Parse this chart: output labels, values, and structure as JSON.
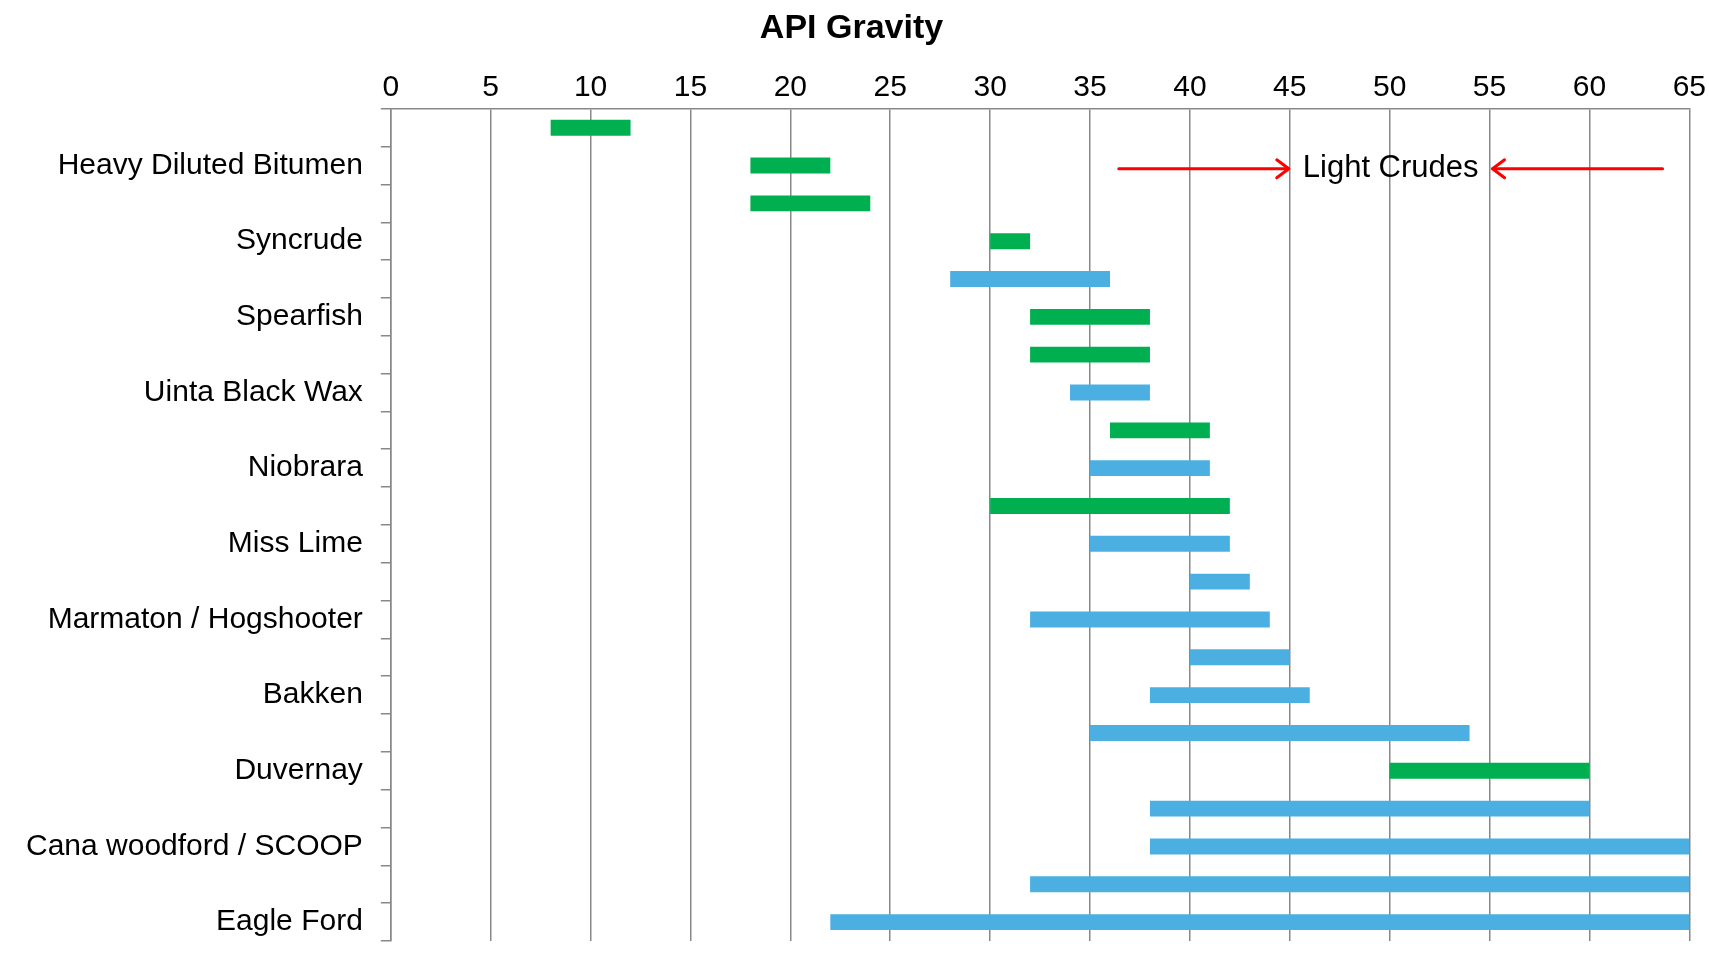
{
  "chart_data": {
    "type": "bar",
    "orientation": "horizontal",
    "title": "API Gravity",
    "categories": [
      null,
      "Heavy Diluted Bitumen",
      null,
      "Syncrude",
      null,
      "Spearfish",
      null,
      "Uinta Black Wax",
      null,
      "Niobrara",
      null,
      "Miss Lime",
      null,
      "Marmaton / Hogshooter",
      null,
      "Bakken",
      null,
      "Duvernay",
      null,
      "Cana woodford / SCOOP",
      null,
      "Eagle Ford"
    ],
    "base": [
      8,
      18,
      18,
      30,
      28,
      32,
      32,
      34,
      36,
      35,
      30,
      35,
      40,
      32,
      40,
      38,
      35,
      50,
      38,
      38,
      32,
      22
    ],
    "values": [
      4,
      4,
      6,
      2,
      8,
      6,
      6,
      4,
      5,
      6,
      12,
      7,
      3,
      12,
      5,
      8,
      19,
      10,
      22,
      27,
      33,
      43
    ],
    "colors": [
      "#00b050",
      "#00b050",
      "#00b050",
      "#00b050",
      "#4bafe1",
      "#00b050",
      "#00b050",
      "#4bafe1",
      "#00b050",
      "#4bafe1",
      "#00b050",
      "#4bafe1",
      "#4bafe1",
      "#4bafe1",
      "#4bafe1",
      "#4bafe1",
      "#4bafe1",
      "#00b050",
      "#4bafe1",
      "#4bafe1",
      "#4bafe1",
      "#4bafe1"
    ],
    "xlim": [
      0,
      65
    ],
    "xticks": [
      0,
      5,
      10,
      15,
      20,
      25,
      30,
      35,
      40,
      45,
      50,
      55,
      60,
      65
    ],
    "grid": "x",
    "legend": false,
    "annotations": [
      "Light Crudes"
    ]
  }
}
